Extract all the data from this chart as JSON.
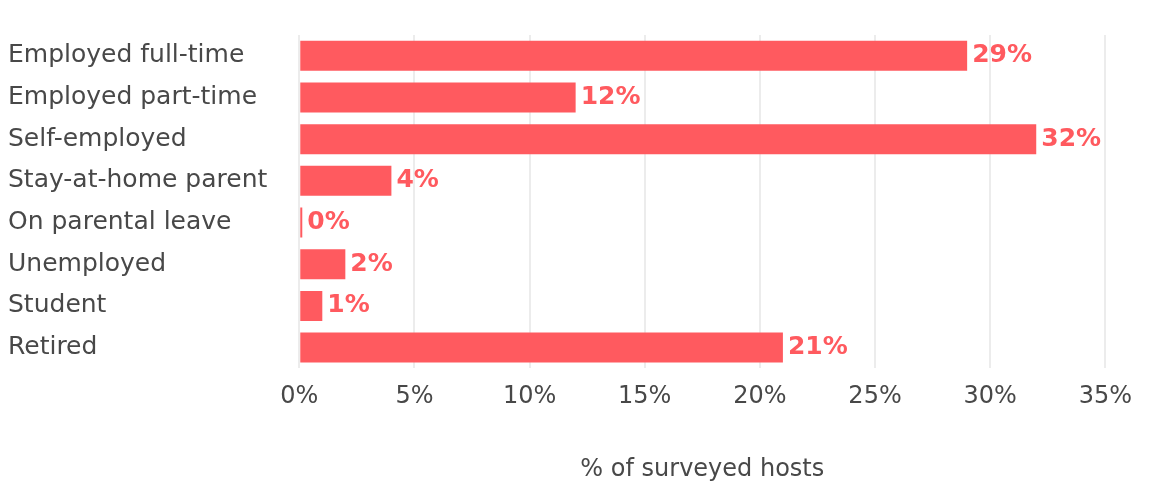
{
  "chart_data": {
    "type": "bar",
    "orientation": "horizontal",
    "xlabel": "% of surveyed hosts",
    "categories": [
      "Employed full-time",
      "Employed part-time",
      "Self-employed",
      "Stay-at-home parent",
      "On parental leave",
      "Unemployed",
      "Student",
      "Retired"
    ],
    "values": [
      29,
      12,
      32,
      4,
      0,
      2,
      1,
      21
    ],
    "value_labels": [
      "29%",
      "12%",
      "32%",
      "4%",
      "0%",
      "2%",
      "1%",
      "21%"
    ],
    "color": "#ff5a5f",
    "xlim": [
      0,
      35
    ],
    "xticks": [
      {
        "value": 0,
        "label": "0%"
      },
      {
        "value": 5,
        "label": "5%"
      },
      {
        "value": 10,
        "label": "10%"
      },
      {
        "value": 15,
        "label": "15%"
      },
      {
        "value": 20,
        "label": "20%"
      },
      {
        "value": 25,
        "label": "25%"
      },
      {
        "value": 30,
        "label": "30%"
      },
      {
        "value": 35,
        "label": "35%"
      }
    ],
    "grid": "x",
    "legend": false
  }
}
